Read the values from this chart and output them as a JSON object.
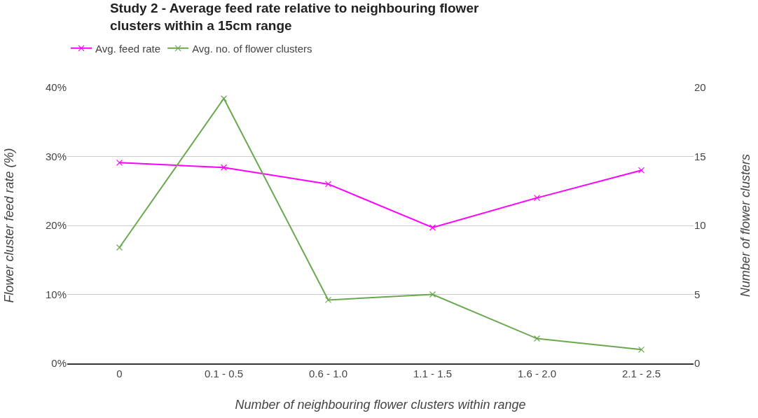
{
  "chart_data": {
    "type": "line",
    "title": "Study 2 - Average feed rate relative to neighbouring flower clusters within a 15cm range",
    "xlabel": "Number of neighbouring flower clusters within range",
    "ylabel": "Flower cluster feed rate (%)",
    "y2label": "Number of flower clusters",
    "categories": [
      "0",
      "0.1 - 0.5",
      "0.6 - 1.0",
      "1.1 - 1.5",
      "1.6 - 2.0",
      "2.1 - 2.5"
    ],
    "series": [
      {
        "name": "Avg. feed rate",
        "color": "#ff00ff",
        "values": [
          29.1,
          28.4,
          26.0,
          19.7,
          24.0,
          28.0
        ]
      },
      {
        "name": "Avg. no. of flower clusters",
        "color": "#6aa84f",
        "axis": "y2",
        "values": [
          8.4,
          19.2,
          4.6,
          5.0,
          1.8,
          1.0
        ]
      }
    ],
    "ylim": [
      0,
      40
    ],
    "yticks": [
      {
        "value": 0,
        "label": "0%"
      },
      {
        "value": 10,
        "label": "10%"
      },
      {
        "value": 20,
        "label": "20%"
      },
      {
        "value": 30,
        "label": "30%"
      },
      {
        "value": 40,
        "label": "40%"
      }
    ],
    "y2lim": [
      0,
      20
    ],
    "y2ticks": [
      0,
      5,
      10,
      15,
      20
    ],
    "grid": "y",
    "legend": "top left",
    "marker": "cross",
    "line_style": "solid"
  }
}
